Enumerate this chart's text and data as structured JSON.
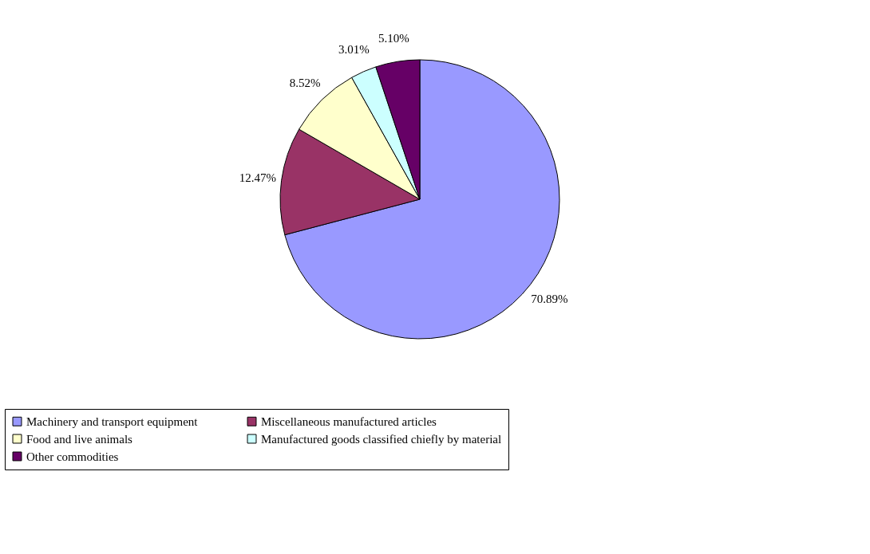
{
  "chart_data": {
    "type": "pie",
    "categories": [
      "Machinery and transport equipment",
      "Miscellaneous manufactured articles",
      "Food and live animals",
      "Manufactured goods classified chiefly by material",
      "Other commodities"
    ],
    "values": [
      70.89,
      12.47,
      8.52,
      3.01,
      5.1
    ],
    "colors": [
      "#9999ff",
      "#993366",
      "#ffffcc",
      "#ccffff",
      "#660066"
    ],
    "value_labels": [
      "70.89%",
      "12.47%",
      "8.52%",
      "3.01%",
      "5.10%"
    ],
    "legend": "bottom"
  }
}
